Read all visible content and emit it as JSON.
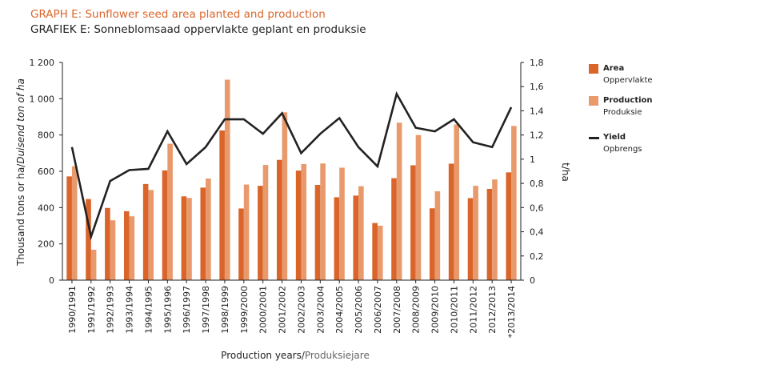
{
  "title_en": "GRAPH E: Sunflower seed area planted and production",
  "title_af": "GRAFIEK E: Sonneblomsaad oppervlakte geplant en produksie",
  "chart_data": {
    "type": "bar",
    "categories": [
      "1990/1991",
      "1991/1992",
      "1992/1993",
      "1993/1994",
      "1994/1995",
      "1995/1996",
      "1996/1997",
      "1997/1998",
      "1998/1999",
      "1999/2000",
      "2000/2001",
      "2001/2002",
      "2002/2003",
      "2003/2004",
      "2004/2005",
      "2005/2006",
      "2006/2007",
      "2007/2008",
      "2008/2009",
      "2009/2010",
      "2010/2011",
      "2011/2012",
      "2012/2013",
      "*2013/2014"
    ],
    "series": [
      {
        "name": "Area",
        "name_af": "Oppervlakte",
        "type": "bar",
        "axis": "left",
        "color": "#d9652b",
        "values": [
          572,
          447,
          398,
          380,
          530,
          605,
          462,
          510,
          825,
          395,
          520,
          663,
          604,
          525,
          457,
          466,
          315,
          562,
          633,
          396,
          642,
          452,
          503,
          594
        ]
      },
      {
        "name": "Production",
        "name_af": "Produksie",
        "type": "bar",
        "axis": "left",
        "color": "#e89a6c",
        "values": [
          628,
          168,
          330,
          352,
          497,
          752,
          453,
          560,
          1105,
          527,
          635,
          925,
          640,
          643,
          620,
          518,
          300,
          868,
          800,
          490,
          858,
          520,
          555,
          850
        ]
      },
      {
        "name": "Yield",
        "name_af": "Opbrengs",
        "type": "line",
        "axis": "right",
        "color": "#222222",
        "values": [
          1.1,
          0.36,
          0.82,
          0.91,
          0.92,
          1.23,
          0.96,
          1.1,
          1.33,
          1.33,
          1.21,
          1.38,
          1.05,
          1.21,
          1.34,
          1.1,
          0.94,
          1.54,
          1.26,
          1.23,
          1.33,
          1.14,
          1.1,
          1.43
        ]
      }
    ],
    "ylim": [
      0,
      1200
    ],
    "yticks": [
      "0",
      "200",
      "400",
      "600",
      "800",
      "1 000",
      "1 200"
    ],
    "y2lim": [
      0,
      1.8
    ],
    "y2ticks": [
      "0",
      "0,2",
      "0,4",
      "0,6",
      "0,8",
      "1",
      "1,2",
      "1,4",
      "1,6",
      "1,8"
    ],
    "ylabel_en": "Thousand tons or ha/",
    "ylabel_af": "Duisend ton of ha",
    "y2label": "t/ha",
    "xlabel_en": "Production years/",
    "xlabel_af": "Produksiejare",
    "grid": false,
    "legend_position": "right"
  }
}
